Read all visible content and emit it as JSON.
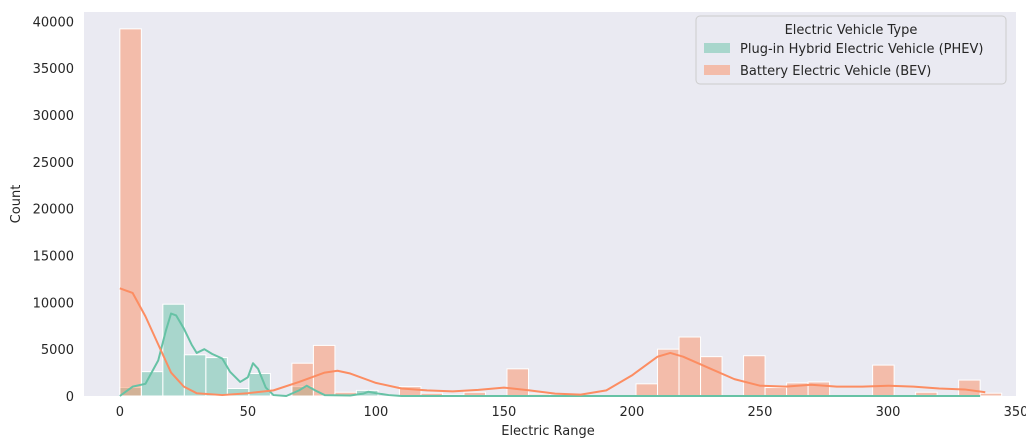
{
  "chart_data": {
    "type": "bar",
    "title": "",
    "xlabel": "Electric Range",
    "ylabel": "Count",
    "xlim": [
      -14,
      350
    ],
    "ylim": [
      0,
      41000
    ],
    "xticks": [
      0,
      50,
      100,
      150,
      200,
      250,
      300,
      350
    ],
    "yticks": [
      0,
      5000,
      10000,
      15000,
      20000,
      25000,
      30000,
      35000,
      40000
    ],
    "grid": false,
    "legend": {
      "title": "Electric Vehicle Type",
      "placement": "top-right"
    },
    "bin_width": 8.4,
    "bins_start": 0,
    "series": [
      {
        "name": "Plug-in Hybrid Electric Vehicle (PHEV)",
        "color": "#66c2a5",
        "hist": [
          900,
          2600,
          9800,
          4400,
          4100,
          800,
          2400,
          0,
          1000,
          0,
          0,
          600,
          0,
          0,
          0,
          100,
          0,
          0,
          0,
          0,
          0,
          0,
          0,
          0,
          0,
          0,
          0,
          0,
          0,
          0,
          0,
          0,
          0,
          0,
          0,
          0,
          0,
          0,
          0,
          0,
          0
        ],
        "kde_x": [
          0,
          5,
          10,
          15,
          18,
          20,
          22,
          25,
          28,
          30,
          33,
          36,
          40,
          43,
          47,
          50,
          52,
          54,
          57,
          60,
          65,
          70,
          73,
          77,
          80,
          90,
          95,
          97,
          100,
          105,
          110,
          120,
          140,
          160,
          200,
          250,
          300,
          336
        ],
        "kde_y": [
          0,
          1000,
          1300,
          3800,
          7000,
          8800,
          8600,
          7200,
          5500,
          4600,
          5000,
          4500,
          4000,
          2600,
          1500,
          2000,
          3500,
          2900,
          900,
          100,
          0,
          600,
          1100,
          500,
          100,
          50,
          250,
          450,
          300,
          100,
          0,
          0,
          0,
          0,
          0,
          0,
          0,
          0
        ]
      },
      {
        "name": "Battery Electric Vehicle (BEV)",
        "color": "#fc8d62",
        "hist": [
          39200,
          0,
          0,
          0,
          0,
          0,
          0,
          0,
          3500,
          5400,
          400,
          0,
          0,
          1000,
          300,
          0,
          400,
          0,
          2900,
          200,
          0,
          0,
          0,
          0,
          1300,
          5000,
          6300,
          4200,
          0,
          4300,
          900,
          1400,
          1500,
          0,
          0,
          3300,
          0,
          400,
          0,
          1700,
          300
        ],
        "kde_x": [
          0,
          5,
          10,
          15,
          20,
          25,
          30,
          40,
          50,
          60,
          70,
          80,
          85,
          90,
          100,
          110,
          120,
          130,
          140,
          150,
          160,
          170,
          180,
          190,
          200,
          210,
          215,
          220,
          230,
          240,
          250,
          260,
          270,
          280,
          290,
          300,
          310,
          320,
          330,
          338
        ],
        "kde_y": [
          11500,
          11000,
          8500,
          5500,
          2500,
          1000,
          300,
          100,
          300,
          600,
          1500,
          2500,
          2700,
          2400,
          1400,
          800,
          600,
          500,
          650,
          900,
          600,
          250,
          150,
          600,
          2200,
          4200,
          4600,
          4200,
          3000,
          1800,
          1100,
          1000,
          1200,
          1000,
          1000,
          1100,
          1000,
          800,
          700,
          400
        ]
      }
    ]
  }
}
